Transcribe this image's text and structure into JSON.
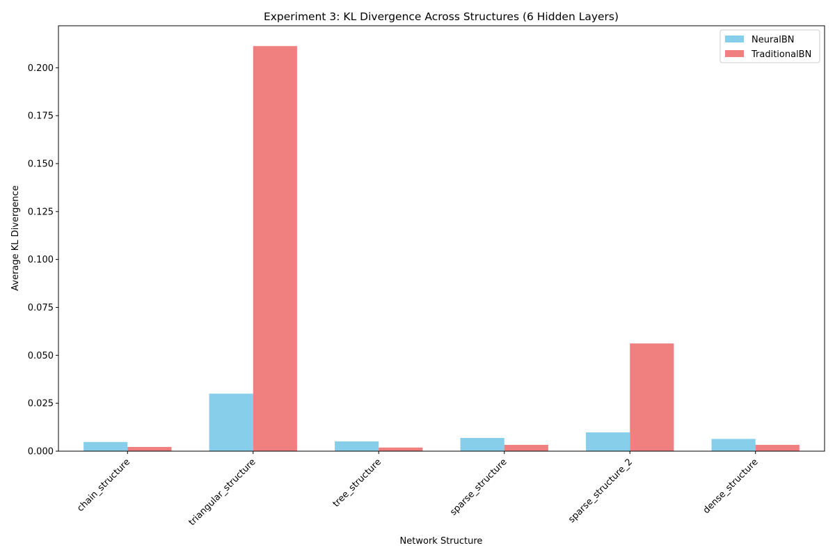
{
  "chart_data": {
    "type": "bar",
    "title": "Experiment 3: KL Divergence Across Structures (6 Hidden Layers)",
    "xlabel": "Network Structure",
    "ylabel": "Average KL Divergence",
    "categories": [
      "chain_structure",
      "triangular_structure",
      "tree_structure",
      "sparse_structure",
      "sparse_structure_2",
      "dense_structure"
    ],
    "series": [
      {
        "name": "NeuralBN",
        "color": "#87ceeb",
        "values": [
          0.0048,
          0.03,
          0.0051,
          0.0069,
          0.0098,
          0.0064
        ]
      },
      {
        "name": "TraditionalBN",
        "color": "#f08080",
        "values": [
          0.0022,
          0.2113,
          0.0019,
          0.0033,
          0.0562,
          0.0033
        ]
      }
    ],
    "ylim": [
      0,
      0.2219
    ],
    "yticks": [
      "0.000",
      "0.025",
      "0.050",
      "0.075",
      "0.100",
      "0.125",
      "0.150",
      "0.175",
      "0.200"
    ],
    "grid": false,
    "legend": "top-right"
  }
}
